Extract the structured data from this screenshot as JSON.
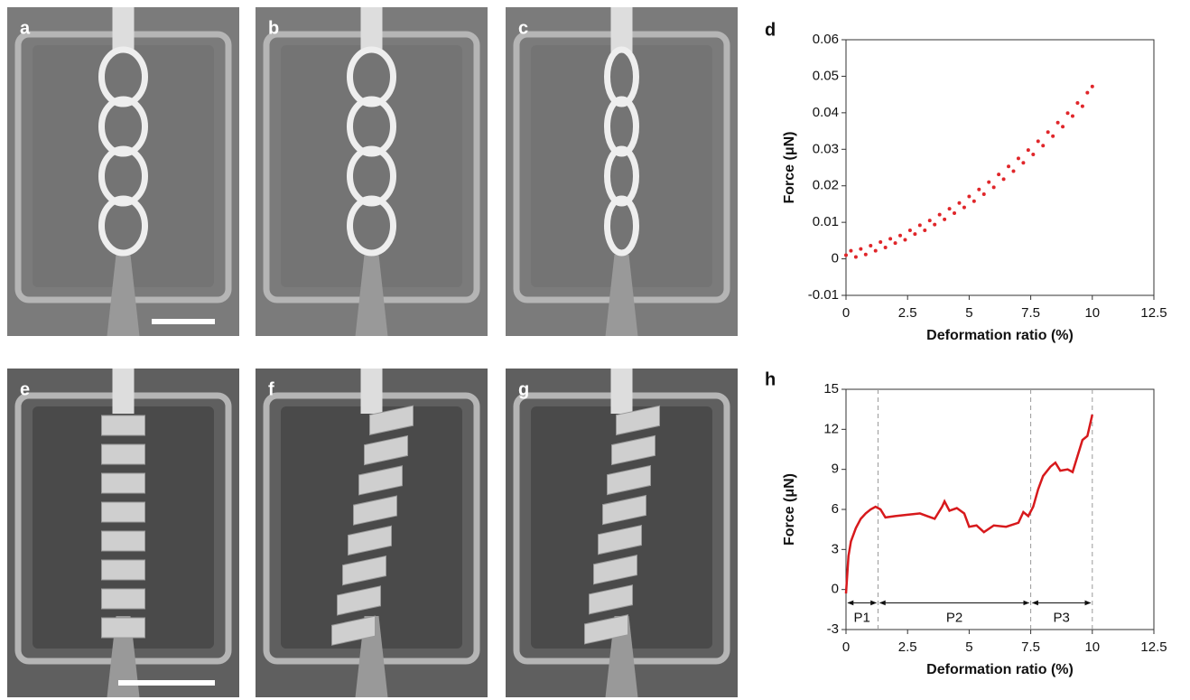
{
  "figure_panels": [
    "a",
    "b",
    "c",
    "e",
    "f",
    "g"
  ],
  "chart_data": [
    {
      "type": "scatter",
      "title": "d",
      "xlabel": "Deformation ratio (%)",
      "ylabel": "Force (μN)",
      "color": "#e0262a",
      "xlim": [
        0,
        12.5
      ],
      "xticks": [
        0,
        2.5,
        5,
        7.5,
        10,
        12.5
      ],
      "ylim": [
        -0.01,
        0.06
      ],
      "yticks": [
        -0.01,
        0,
        0.01,
        0.02,
        0.03,
        0.04,
        0.05,
        0.06
      ],
      "x": [
        0,
        0.2,
        0.4,
        0.6,
        0.8,
        1.0,
        1.2,
        1.4,
        1.6,
        1.8,
        2.0,
        2.2,
        2.4,
        2.6,
        2.8,
        3.0,
        3.2,
        3.4,
        3.6,
        3.8,
        4.0,
        4.2,
        4.4,
        4.6,
        4.8,
        5.0,
        5.2,
        5.4,
        5.6,
        5.8,
        6.0,
        6.2,
        6.4,
        6.6,
        6.8,
        7.0,
        7.2,
        7.4,
        7.6,
        7.8,
        8.0,
        8.2,
        8.4,
        8.6,
        8.8,
        9.0,
        9.2,
        9.4,
        9.6,
        9.8,
        10.0
      ],
      "values": [
        0.001,
        0.0022,
        0.0005,
        0.0027,
        0.0012,
        0.0036,
        0.0022,
        0.0046,
        0.0031,
        0.0055,
        0.0043,
        0.0064,
        0.0052,
        0.0078,
        0.0068,
        0.0092,
        0.0078,
        0.0105,
        0.0094,
        0.0121,
        0.0108,
        0.0137,
        0.0125,
        0.0153,
        0.0141,
        0.0171,
        0.0158,
        0.019,
        0.0177,
        0.021,
        0.0196,
        0.0231,
        0.0218,
        0.0253,
        0.024,
        0.0275,
        0.0263,
        0.0298,
        0.0286,
        0.0322,
        0.031,
        0.0347,
        0.0336,
        0.0373,
        0.0362,
        0.0399,
        0.0391,
        0.0427,
        0.0418,
        0.0455,
        0.0472
      ]
    },
    {
      "type": "line",
      "title": "h",
      "xlabel": "Deformation ratio (%)",
      "ylabel": "Force (μN)",
      "color": "#d7191c",
      "xlim": [
        0,
        12.5
      ],
      "xticks": [
        0,
        2.5,
        5,
        7.5,
        10,
        12.5
      ],
      "ylim": [
        -3,
        15
      ],
      "yticks": [
        -3,
        0,
        3,
        6,
        9,
        12,
        15
      ],
      "x": [
        0,
        0.1,
        0.2,
        0.4,
        0.6,
        0.8,
        1.0,
        1.2,
        1.4,
        1.6,
        2.0,
        2.5,
        3.0,
        3.3,
        3.6,
        3.9,
        4.0,
        4.2,
        4.5,
        4.8,
        5.0,
        5.3,
        5.6,
        6.0,
        6.5,
        7.0,
        7.2,
        7.4,
        7.6,
        7.8,
        8.0,
        8.3,
        8.5,
        8.7,
        9.0,
        9.2,
        9.4,
        9.6,
        9.8,
        10.0
      ],
      "values": [
        -0.3,
        2.5,
        3.6,
        4.6,
        5.3,
        5.7,
        6.0,
        6.2,
        6.0,
        5.4,
        5.5,
        5.6,
        5.7,
        5.5,
        5.3,
        6.2,
        6.6,
        5.9,
        6.1,
        5.7,
        4.7,
        4.8,
        4.3,
        4.8,
        4.7,
        5.0,
        5.8,
        5.5,
        6.2,
        7.5,
        8.5,
        9.2,
        9.5,
        8.9,
        9.0,
        8.8,
        10.0,
        11.2,
        11.5,
        13.1
      ],
      "phases": [
        {
          "label": "P1",
          "start": 0,
          "end": 1.3
        },
        {
          "label": "P2",
          "start": 1.3,
          "end": 7.5
        },
        {
          "label": "P3",
          "start": 7.5,
          "end": 10
        }
      ]
    }
  ]
}
